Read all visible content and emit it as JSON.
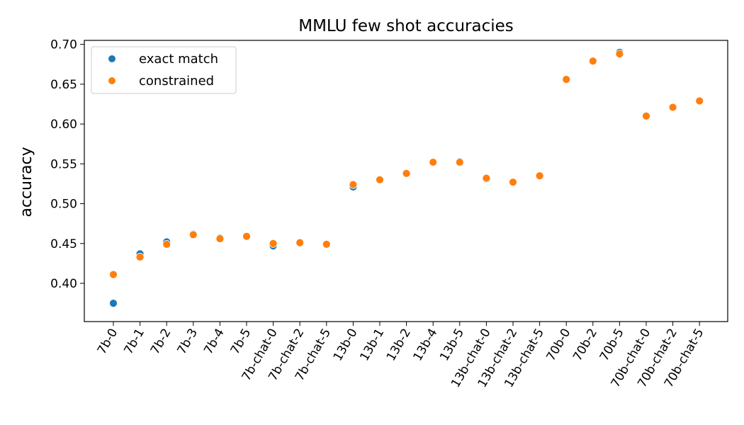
{
  "chart_data": {
    "type": "scatter",
    "title": "MMLU few shot accuracies",
    "xlabel": "",
    "ylabel": "accuracy",
    "ylim": [
      0.352,
      0.705
    ],
    "yticks": [
      "0.40",
      "0.45",
      "0.50",
      "0.55",
      "0.60",
      "0.65",
      "0.70"
    ],
    "ytick_values": [
      0.4,
      0.45,
      0.5,
      0.55,
      0.6,
      0.65,
      0.7
    ],
    "categories": [
      "7b-0",
      "7b-1",
      "7b-2",
      "7b-3",
      "7b-4",
      "7b-5",
      "7b-chat-0",
      "7b-chat-2",
      "7b-chat-5",
      "13b-0",
      "13b-1",
      "13b-2",
      "13b-4",
      "13b-5",
      "13b-chat-0",
      "13b-chat-2",
      "13b-chat-5",
      "70b-0",
      "70b-2",
      "70b-5",
      "70b-chat-0",
      "70b-chat-2",
      "70b-chat-5"
    ],
    "series": [
      {
        "name": "exact match",
        "color": "#1f77b4",
        "values": [
          0.375,
          0.437,
          0.452,
          0.462,
          0.457,
          0.459,
          0.447,
          0.451,
          0.449,
          0.521,
          0.53,
          0.538,
          0.552,
          0.553,
          0.531,
          0.527,
          0.535,
          0.656,
          0.679,
          0.69,
          0.61,
          0.621,
          0.629
        ]
      },
      {
        "name": "constrained",
        "color": "#ff7f0e",
        "values": [
          0.411,
          0.433,
          0.449,
          0.461,
          0.456,
          0.459,
          0.45,
          0.451,
          0.449,
          0.524,
          0.53,
          0.538,
          0.552,
          0.552,
          0.532,
          0.527,
          0.535,
          0.656,
          0.679,
          0.688,
          0.61,
          0.621,
          0.629
        ]
      }
    ],
    "grid": false,
    "legend_position": "top-left"
  }
}
